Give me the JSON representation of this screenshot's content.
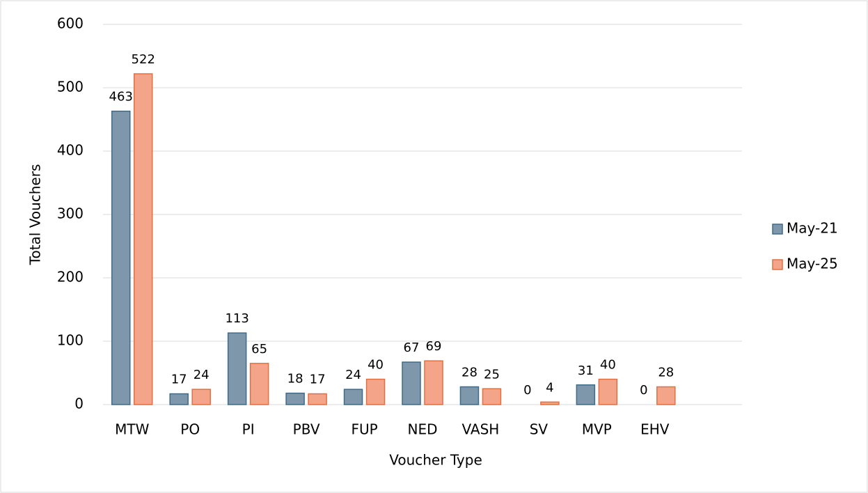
{
  "chart_data": {
    "type": "bar",
    "x_label": "Voucher Type",
    "y_label": "Total Vouchers",
    "categories": [
      "MTW",
      "PO",
      "PI",
      "PBV",
      "FUP",
      "NED",
      "VASH",
      "SV",
      "MVP",
      "EHV",
      null
    ],
    "series": [
      {
        "name": "May-21",
        "color": "#7f97ab",
        "values": [
          463,
          17,
          113,
          18,
          24,
          67,
          28,
          0,
          31,
          0,
          null
        ]
      },
      {
        "name": "May-25",
        "color": "#f4a489",
        "values": [
          522,
          24,
          65,
          17,
          40,
          69,
          25,
          4,
          40,
          28,
          null
        ]
      }
    ],
    "ylim": [
      0,
      600
    ],
    "yticks": [
      0,
      100,
      200,
      300,
      400,
      500,
      600
    ],
    "grid": true,
    "legend": "right"
  }
}
